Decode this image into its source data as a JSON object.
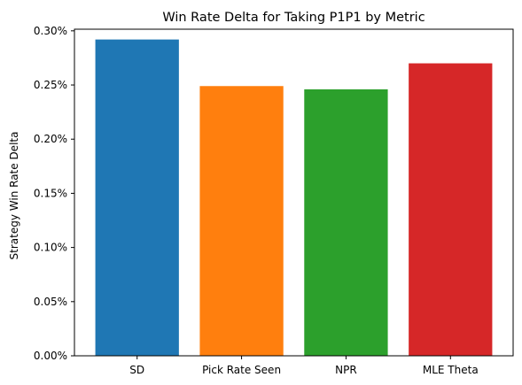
{
  "chart_data": {
    "type": "bar",
    "title": "Win Rate Delta for Taking P1P1 by Metric",
    "xlabel": "",
    "ylabel": "Strategy Win Rate Delta",
    "categories": [
      "SD",
      "Pick Rate Seen",
      "NPR",
      "MLE Theta"
    ],
    "values": [
      0.292,
      0.249,
      0.246,
      0.27
    ],
    "colors": [
      "#1f77b4",
      "#ff7f0e",
      "#2ca02c",
      "#d62728"
    ],
    "ylim": [
      0,
      0.3015
    ],
    "yticks": [
      0.0,
      0.05,
      0.1,
      0.15,
      0.2,
      0.25,
      0.3
    ],
    "ytick_labels": [
      "0.00%",
      "0.05%",
      "0.10%",
      "0.15%",
      "0.20%",
      "0.25%",
      "0.30%"
    ],
    "grid": false,
    "legend": "none"
  }
}
